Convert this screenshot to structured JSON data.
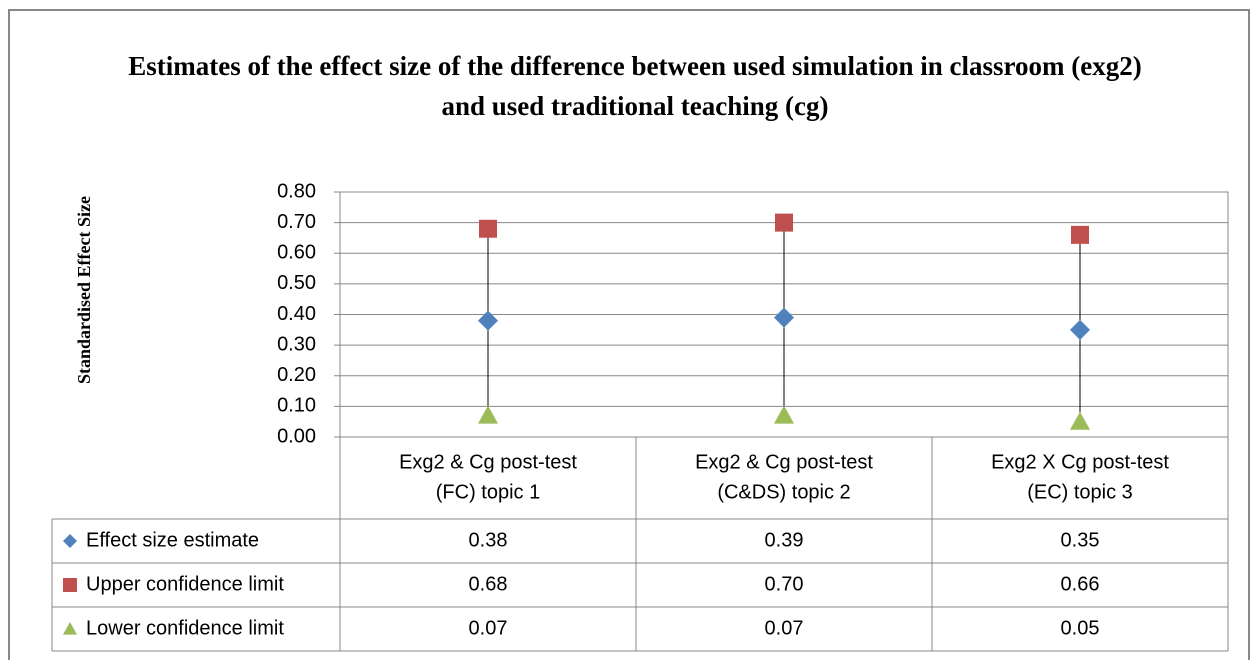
{
  "chart_data": {
    "type": "high-low",
    "title": "Estimates of the  effect size of the difference between used  simulation in classroom (exg2) and used traditional teaching (cg)",
    "ylabel": "Standardised Effect Size",
    "categories": [
      [
        "Exg2 & Cg  post-test",
        "(FC) topic 1"
      ],
      [
        "Exg2 & Cg  post-test",
        "(C&DS) topic 2"
      ],
      [
        "Exg2 X Cg  post-test",
        "(EC) topic 3"
      ]
    ],
    "series": [
      {
        "name": "Effect size estimate",
        "color": "#4f81bd",
        "marker": "diamond",
        "values": [
          0.38,
          0.39,
          0.35
        ],
        "value_labels": [
          "0.38",
          "0.39",
          "0.35"
        ]
      },
      {
        "name": "Upper confidence limit",
        "color": "#c0504d",
        "marker": "square",
        "values": [
          0.68,
          0.7,
          0.66
        ],
        "value_labels": [
          "0.68",
          "0.70",
          "0.66"
        ]
      },
      {
        "name": "Lower confidence limit",
        "color": "#9bbb59",
        "marker": "triangle",
        "values": [
          0.07,
          0.07,
          0.05
        ],
        "value_labels": [
          "0.07",
          "0.07",
          "0.05"
        ]
      }
    ],
    "ylim": [
      0,
      0.8
    ],
    "yticks": [
      {
        "value": 0,
        "label": "0.00"
      },
      {
        "value": 0.1,
        "label": "0.10"
      },
      {
        "value": 0.2,
        "label": "0.20"
      },
      {
        "value": 0.3,
        "label": "0.30"
      },
      {
        "value": 0.4,
        "label": "0.40"
      },
      {
        "value": 0.5,
        "label": "0.50"
      },
      {
        "value": 0.6,
        "label": "0.60"
      },
      {
        "value": 0.7,
        "label": "0.70"
      },
      {
        "value": 0.8,
        "label": "0.80"
      }
    ],
    "grid": true
  }
}
